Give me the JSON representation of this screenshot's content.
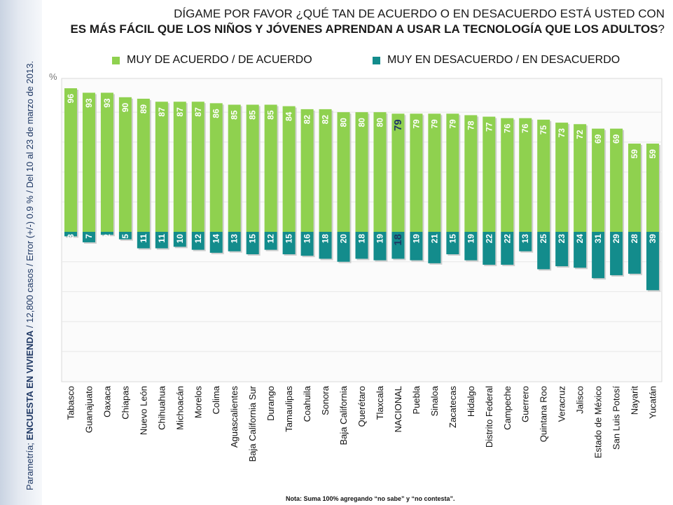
{
  "header": {
    "title_line1": "DÍGAME POR FAVOR ¿QUÉ TAN DE ACUERDO O EN DESACUERDO ESTÁ USTED CON",
    "title_line2": "ES MÁS FÁCIL QUE LOS NIÑOS Y JÓVENES APRENDAN A USAR LA TECNOLOGÍA QUE LOS ADULTOS",
    "title_line2_tail": "?"
  },
  "side_note": {
    "prefix": "Parametría; ",
    "bold": "ENCUESTA EN VIVIENDA",
    "rest": " / 12,800 casos / Error (+/-) 0.9 % / Del 10 al 23 de marzo de 2013."
  },
  "footnote": "Nota: Suma 100% agregando “no sabe” y “no contesta”.",
  "colors": {
    "agree": "#8fd14f",
    "disagree": "#138c8c"
  },
  "chart_data": {
    "type": "bar",
    "ylabel": "%",
    "ylim": [
      -100,
      100
    ],
    "highlight_category": "NACIONAL",
    "categories": [
      "Tabasco",
      "Guanajuato",
      "Oaxaca",
      "Chiapas",
      "Nuevo León",
      "Chihuahua",
      "Michoacán",
      "Morelos",
      "Colima",
      "Aguascalientes",
      "Baja California Sur",
      "Durango",
      "Tamaulipas",
      "Coahuila",
      "Sonora",
      "Baja California",
      "Querétaro",
      "Tlaxcala",
      "NACIONAL",
      "Puebla",
      "Sinaloa",
      "Zacatecas",
      "Hidalgo",
      "Distrito Federal",
      "Campeche",
      "Guerrero",
      "Quintana Roo",
      "Veracruz",
      "Jalisco",
      "Estado de México",
      "San Luis Potosí",
      "Nayarit",
      "Yucatán"
    ],
    "series": [
      {
        "name": "MUY DE ACUERDO / DE ACUERDO",
        "values": [
          96,
          93,
          93,
          90,
          89,
          87,
          87,
          87,
          86,
          85,
          85,
          85,
          84,
          82,
          82,
          80,
          80,
          80,
          79,
          79,
          79,
          79,
          78,
          77,
          76,
          76,
          75,
          73,
          72,
          69,
          69,
          59,
          59
        ]
      },
      {
        "name": "MUY EN DESACUERDO / EN DESACUERDO",
        "values": [
          3,
          7,
          2,
          5,
          11,
          11,
          10,
          12,
          14,
          13,
          15,
          12,
          15,
          16,
          18,
          20,
          18,
          19,
          18,
          19,
          21,
          15,
          19,
          22,
          22,
          13,
          25,
          23,
          24,
          31,
          29,
          28,
          39
        ]
      }
    ]
  }
}
